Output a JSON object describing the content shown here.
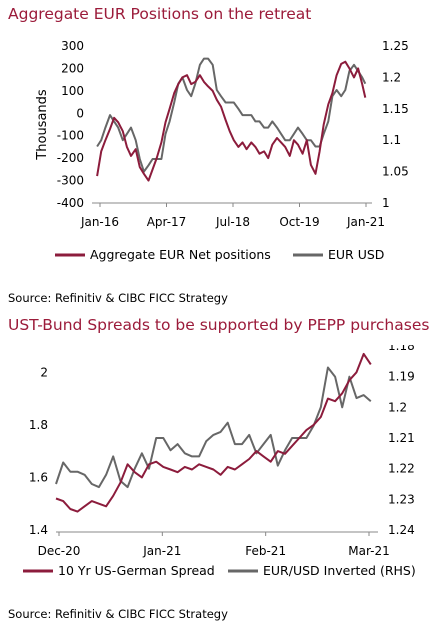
{
  "colors": {
    "title": "#9b1b3a",
    "series_primary": "#8c1c3c",
    "series_secondary": "#676767"
  },
  "chart_data": [
    {
      "type": "line",
      "title": "Aggregate EUR Positions on the retreat",
      "source": "Source: Refinitiv & CIBC FICC Strategy",
      "ylabel": "Thousands",
      "ylim": [
        -400,
        300
      ],
      "y_ticks": [
        "300",
        "200",
        "100",
        "0",
        "-100",
        "-200",
        "-300",
        "-400"
      ],
      "y2lim": [
        1.0,
        1.25
      ],
      "y2_ticks": [
        "1.25",
        "1.2",
        "1.15",
        "1.1",
        "1.05",
        "1"
      ],
      "x_ticks": [
        "Jan-16",
        "Apr-17",
        "Jul-18",
        "Oct-19",
        "Jan-21"
      ],
      "xlim": [
        2015.9,
        2021.35
      ],
      "legend_position": "bottom",
      "series": [
        {
          "name": "Aggregate EUR Net positions",
          "axis": "left",
          "color": "#8c1c3c",
          "x": [
            2016.0,
            2016.08,
            2016.16,
            2016.25,
            2016.33,
            2016.41,
            2016.5,
            2016.58,
            2016.66,
            2016.75,
            2016.83,
            2016.91,
            2017.0,
            2017.08,
            2017.16,
            2017.25,
            2017.33,
            2017.41,
            2017.5,
            2017.58,
            2017.66,
            2017.75,
            2017.83,
            2017.91,
            2018.0,
            2018.08,
            2018.16,
            2018.25,
            2018.33,
            2018.41,
            2018.5,
            2018.58,
            2018.66,
            2018.75,
            2018.83,
            2018.91,
            2019.0,
            2019.08,
            2019.16,
            2019.25,
            2019.33,
            2019.41,
            2019.5,
            2019.58,
            2019.66,
            2019.75,
            2019.83,
            2019.91,
            2020.0,
            2020.08,
            2020.16,
            2020.25,
            2020.33,
            2020.41,
            2020.5,
            2020.58,
            2020.66,
            2020.75,
            2020.83,
            2020.91,
            2021.0,
            2021.08,
            2021.16,
            2021.22
          ],
          "values": [
            -280,
            -170,
            -120,
            -70,
            -20,
            -40,
            -80,
            -150,
            -190,
            -160,
            -240,
            -270,
            -300,
            -250,
            -200,
            -130,
            -40,
            20,
            90,
            130,
            160,
            170,
            130,
            140,
            170,
            140,
            120,
            100,
            60,
            30,
            -30,
            -80,
            -120,
            -150,
            -130,
            -160,
            -130,
            -150,
            -180,
            -170,
            -200,
            -140,
            -110,
            -130,
            -150,
            -190,
            -120,
            -140,
            -180,
            -120,
            -230,
            -270,
            -170,
            -50,
            40,
            90,
            170,
            220,
            230,
            200,
            160,
            200,
            130,
            70
          ]
        },
        {
          "name": "EUR USD",
          "axis": "right",
          "color": "#676767",
          "x": [
            2016.0,
            2016.08,
            2016.16,
            2016.25,
            2016.33,
            2016.41,
            2016.5,
            2016.58,
            2016.66,
            2016.75,
            2016.83,
            2016.91,
            2017.0,
            2017.08,
            2017.16,
            2017.25,
            2017.33,
            2017.41,
            2017.5,
            2017.58,
            2017.66,
            2017.75,
            2017.83,
            2017.91,
            2018.0,
            2018.08,
            2018.16,
            2018.25,
            2018.33,
            2018.41,
            2018.5,
            2018.58,
            2018.66,
            2018.75,
            2018.83,
            2018.91,
            2019.0,
            2019.08,
            2019.16,
            2019.25,
            2019.33,
            2019.41,
            2019.5,
            2019.58,
            2019.66,
            2019.75,
            2019.83,
            2019.91,
            2020.0,
            2020.08,
            2020.16,
            2020.25,
            2020.33,
            2020.41,
            2020.5,
            2020.58,
            2020.66,
            2020.75,
            2020.83,
            2020.91,
            2021.0,
            2021.08,
            2021.16,
            2021.22
          ],
          "values": [
            1.09,
            1.1,
            1.12,
            1.14,
            1.13,
            1.12,
            1.1,
            1.11,
            1.12,
            1.1,
            1.07,
            1.05,
            1.06,
            1.07,
            1.07,
            1.07,
            1.11,
            1.13,
            1.16,
            1.19,
            1.2,
            1.18,
            1.17,
            1.19,
            1.22,
            1.23,
            1.23,
            1.22,
            1.18,
            1.17,
            1.16,
            1.16,
            1.16,
            1.15,
            1.14,
            1.14,
            1.14,
            1.13,
            1.13,
            1.12,
            1.12,
            1.13,
            1.12,
            1.11,
            1.1,
            1.1,
            1.11,
            1.12,
            1.11,
            1.1,
            1.1,
            1.09,
            1.09,
            1.11,
            1.13,
            1.17,
            1.18,
            1.17,
            1.18,
            1.21,
            1.22,
            1.21,
            1.2,
            1.19
          ]
        }
      ]
    },
    {
      "type": "line",
      "title": "UST-Bund Spreads to be supported by PEPP purchases",
      "source": "Source: Refinitiv & CIBC FICC Strategy",
      "ylim": [
        1.4,
        2.1
      ],
      "y_ticks": [
        "2",
        "1.8",
        "1.6",
        "1.4"
      ],
      "y2lim": [
        1.18,
        1.24
      ],
      "y2_inverted": true,
      "y2_ticks": [
        "1.18",
        "1.19",
        "1.2",
        "1.21",
        "1.22",
        "1.23",
        "1.24"
      ],
      "x_ticks": [
        "Dec-20",
        "Jan-21",
        "Feb-21",
        "Mar-21"
      ],
      "xlim": [
        0,
        90
      ],
      "legend_position": "bottom",
      "series": [
        {
          "name": "10 Yr US-German Spread",
          "axis": "left",
          "color": "#8c1c3c",
          "x": [
            0,
            2,
            4,
            6,
            8,
            10,
            12,
            14,
            16,
            18,
            20,
            22,
            24,
            26,
            28,
            30,
            32,
            34,
            36,
            38,
            40,
            42,
            44,
            46,
            48,
            50,
            52,
            54,
            56,
            58,
            60,
            62,
            64,
            66,
            68,
            70,
            72,
            74,
            76,
            78,
            80,
            82,
            84,
            86,
            88
          ],
          "values": [
            1.52,
            1.51,
            1.48,
            1.47,
            1.49,
            1.51,
            1.5,
            1.49,
            1.53,
            1.58,
            1.65,
            1.62,
            1.6,
            1.65,
            1.66,
            1.64,
            1.63,
            1.62,
            1.64,
            1.63,
            1.65,
            1.64,
            1.63,
            1.61,
            1.64,
            1.63,
            1.65,
            1.67,
            1.7,
            1.68,
            1.66,
            1.7,
            1.69,
            1.72,
            1.75,
            1.78,
            1.8,
            1.83,
            1.9,
            1.89,
            1.92,
            1.97,
            2.0,
            2.07,
            2.03
          ]
        },
        {
          "name": "EUR/USD Inverted (RHS)",
          "axis": "right",
          "color": "#676767",
          "x": [
            0,
            2,
            4,
            6,
            8,
            10,
            12,
            14,
            16,
            18,
            20,
            22,
            24,
            26,
            28,
            30,
            32,
            34,
            36,
            38,
            40,
            42,
            44,
            46,
            48,
            50,
            52,
            54,
            56,
            58,
            60,
            62,
            64,
            66,
            68,
            70,
            72,
            74,
            76,
            78,
            80,
            82,
            84,
            86,
            88
          ],
          "values": [
            1.225,
            1.218,
            1.221,
            1.221,
            1.222,
            1.225,
            1.226,
            1.222,
            1.216,
            1.224,
            1.226,
            1.22,
            1.215,
            1.22,
            1.21,
            1.21,
            1.214,
            1.212,
            1.215,
            1.216,
            1.216,
            1.211,
            1.209,
            1.208,
            1.205,
            1.212,
            1.212,
            1.209,
            1.215,
            1.212,
            1.209,
            1.219,
            1.214,
            1.21,
            1.21,
            1.21,
            1.206,
            1.2,
            1.187,
            1.19,
            1.2,
            1.19,
            1.197,
            1.196,
            1.198
          ]
        }
      ]
    }
  ]
}
